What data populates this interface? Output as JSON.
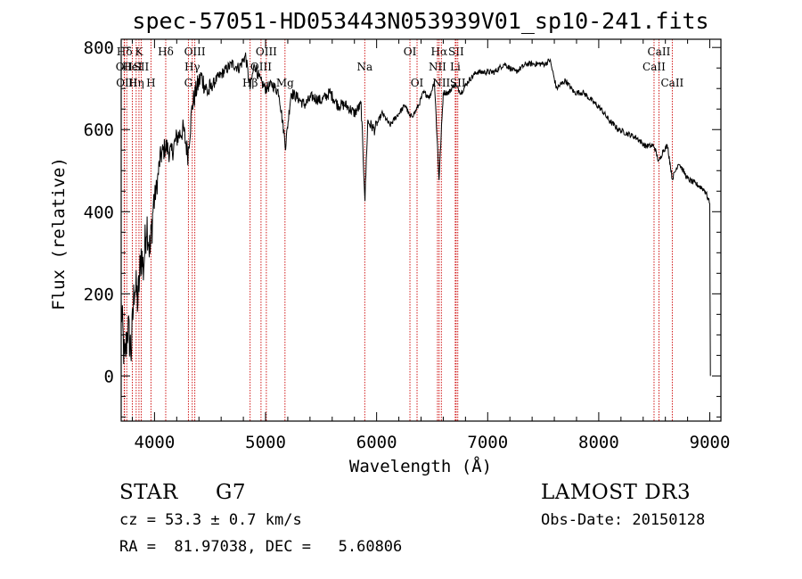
{
  "chart_data": {
    "type": "line",
    "title": "spec-57051-HD053443N053939V01_sp10-241.fits",
    "xlabel": "Wavelength (Å)",
    "ylabel": "Flux (relative)",
    "xlim": [
      3700,
      9100
    ],
    "ylim": [
      -110,
      820
    ],
    "x_ticks": [
      4000,
      5000,
      6000,
      7000,
      8000,
      9000
    ],
    "y_ticks": [
      0,
      200,
      400,
      600,
      800
    ],
    "x_tick_labels": [
      "4000",
      "5000",
      "6000",
      "7000",
      "8000",
      "9000"
    ],
    "y_tick_labels": [
      "0",
      "200",
      "400",
      "600",
      "800"
    ],
    "grid": false,
    "series": [
      {
        "name": "flux",
        "x": [
          3700,
          3730,
          3760,
          3790,
          3820,
          3850,
          3880,
          3900,
          3930,
          3960,
          3990,
          4020,
          4050,
          4100,
          4150,
          4200,
          4260,
          4300,
          4340,
          4380,
          4420,
          4480,
          4550,
          4620,
          4700,
          4760,
          4820,
          4860,
          4900,
          4950,
          5000,
          5060,
          5120,
          5180,
          5230,
          5280,
          5350,
          5420,
          5500,
          5580,
          5650,
          5720,
          5800,
          5860,
          5895,
          5920,
          5980,
          6050,
          6120,
          6200,
          6260,
          6300,
          6340,
          6380,
          6420,
          6480,
          6520,
          6562,
          6600,
          6650,
          6700,
          6760,
          6830,
          6900,
          6980,
          7060,
          7150,
          7250,
          7350,
          7450,
          7520,
          7560,
          7620,
          7700,
          7780,
          7860,
          7940,
          8020,
          8100,
          8180,
          8260,
          8340,
          8420,
          8498,
          8542,
          8580,
          8620,
          8662,
          8720,
          8800,
          8860,
          8920,
          8960,
          9000,
          9005
        ],
        "values": [
          170,
          30,
          120,
          60,
          230,
          180,
          300,
          260,
          380,
          300,
          420,
          460,
          530,
          560,
          540,
          580,
          600,
          540,
          660,
          700,
          730,
          690,
          720,
          740,
          760,
          750,
          780,
          700,
          760,
          720,
          700,
          710,
          690,
          560,
          690,
          680,
          660,
          680,
          670,
          690,
          660,
          660,
          640,
          660,
          430,
          620,
          600,
          640,
          610,
          640,
          660,
          630,
          640,
          660,
          690,
          680,
          720,
          480,
          690,
          690,
          710,
          690,
          720,
          740,
          740,
          740,
          760,
          740,
          760,
          760,
          760,
          770,
          700,
          720,
          690,
          690,
          670,
          650,
          620,
          600,
          590,
          580,
          560,
          560,
          520,
          550,
          560,
          480,
          520,
          480,
          470,
          460,
          450,
          420,
          0
        ]
      }
    ],
    "line_markers": [
      {
        "label": "Hδ",
        "x": 3730,
        "row": 1
      },
      {
        "label": "OII",
        "x": 3727,
        "row": 2
      },
      {
        "label": "OIII",
        "x": 3750,
        "row": 3
      },
      {
        "label": "K",
        "x": 3860,
        "row": 1
      },
      {
        "label": "HeI",
        "x": 3800,
        "row": 2
      },
      {
        "label": "Hη",
        "x": 3835,
        "row": 3
      },
      {
        "label": "SII",
        "x": 3880,
        "row": 2
      },
      {
        "label": "H",
        "x": 3968,
        "row": 3
      },
      {
        "label": "Hδ",
        "x": 4101,
        "row": 1
      },
      {
        "label": "OIII",
        "x": 4363,
        "row": 1
      },
      {
        "label": "Hγ",
        "x": 4340,
        "row": 2
      },
      {
        "label": "G",
        "x": 4305,
        "row": 3
      },
      {
        "label": "OIII",
        "x": 5007,
        "row": 1
      },
      {
        "label": "OIII",
        "x": 4959,
        "row": 2
      },
      {
        "label": "Hβ",
        "x": 4861,
        "row": 3
      },
      {
        "label": "Mg",
        "x": 5175,
        "row": 3
      },
      {
        "label": "Na",
        "x": 5893,
        "row": 2
      },
      {
        "label": "OI",
        "x": 6300,
        "row": 1
      },
      {
        "label": "OI",
        "x": 6364,
        "row": 3
      },
      {
        "label": "Hα",
        "x": 6563,
        "row": 1
      },
      {
        "label": "SII",
        "x": 6716,
        "row": 1
      },
      {
        "label": "NII",
        "x": 6548,
        "row": 2
      },
      {
        "label": "Li",
        "x": 6708,
        "row": 2
      },
      {
        "label": "NII",
        "x": 6583,
        "row": 3
      },
      {
        "label": "SII",
        "x": 6731,
        "row": 3
      },
      {
        "label": "CaII",
        "x": 8542,
        "row": 1
      },
      {
        "label": "CaII",
        "x": 8498,
        "row": 2
      },
      {
        "label": "CaII",
        "x": 8662,
        "row": 3
      }
    ]
  },
  "info": {
    "object_class": "STAR",
    "subclass": "G7",
    "survey": "LAMOST DR3",
    "redshift_line": "cz = 53.3 ± 0.7 km/s",
    "obs_date": "Obs-Date: 20150128",
    "coords_line": "RA =  81.97038, DEC =   5.60806"
  },
  "colors": {
    "axes": "#000000",
    "spectrum": "#000000",
    "marker_line": "#cc0000",
    "background": "#ffffff"
  }
}
